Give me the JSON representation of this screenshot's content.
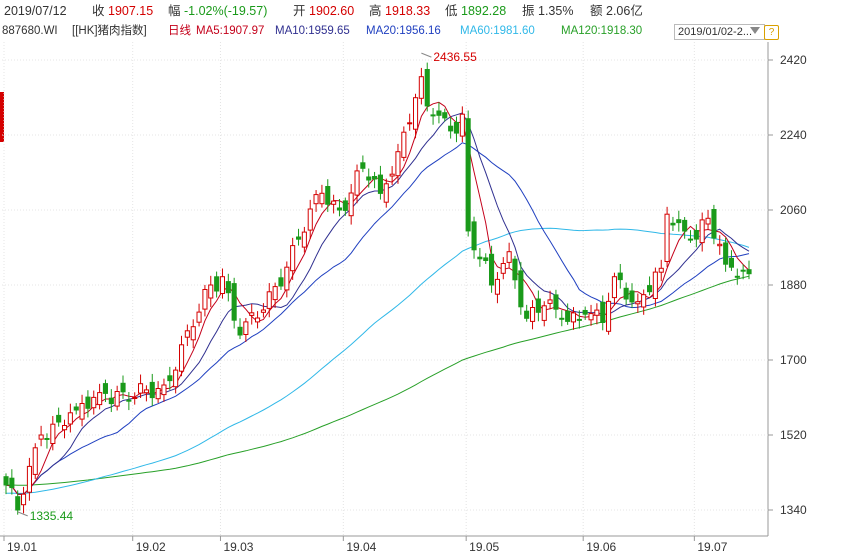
{
  "quote": {
    "date": "2019/07/12",
    "close_label": "收",
    "close": "1907.15",
    "change_label": "幅",
    "change": "-1.02%(-19.57)",
    "open_label": "开",
    "open": "1902.60",
    "high_label": "高",
    "high": "1918.33",
    "low_label": "低",
    "low": "1892.28",
    "amp_label": "振",
    "amp": "1.35%",
    "amount_label": "额",
    "amount": "2.06亿"
  },
  "legend": {
    "symbol": "887680.WI",
    "name": "[[HK]猪肉指数]",
    "period": "日线",
    "ma5": "MA5:1907.97",
    "ma10": "MA10:1959.65",
    "ma20": "MA20:1956.16",
    "ma60": "MA60:1981.60",
    "ma120": "MA120:1918.30",
    "range": "2019/01/02-2...",
    "help": "?"
  },
  "colors": {
    "up": "#d40000",
    "down": "#1a9a1a",
    "ma5": "#c4001a",
    "ma10": "#303090",
    "ma20": "#2040c0",
    "ma60": "#30b8e8",
    "ma120": "#28a028",
    "grid": "#e4e4e4",
    "axis": "#999999"
  },
  "chart_data": {
    "type": "candlestick",
    "yticks": [
      2420,
      2240,
      2060,
      1880,
      1700,
      1520,
      1340
    ],
    "xticks": [
      "19.01",
      "19.02",
      "19.03",
      "19.04",
      "19.05",
      "19.06",
      "19.07"
    ],
    "ylim": [
      1300,
      2460
    ],
    "annotations": [
      {
        "text": "2436.55",
        "value": 2436.55,
        "date": "19.04"
      },
      {
        "text": "1335.44",
        "value": 1335.44,
        "date": "19.01"
      }
    ],
    "anchors": [
      {
        "date": "2019-01-02",
        "close": 1400
      },
      {
        "date": "2019-01-04",
        "close": 1340
      },
      {
        "date": "2019-01-10",
        "close": 1520
      },
      {
        "date": "2019-01-18",
        "close": 1580
      },
      {
        "date": "2019-01-25",
        "close": 1620
      },
      {
        "date": "2019-02-01",
        "close": 1610
      },
      {
        "date": "2019-02-15",
        "close": 1640
      },
      {
        "date": "2019-02-22",
        "close": 1780
      },
      {
        "date": "2019-02-27",
        "close": 1880
      },
      {
        "date": "2019-03-01",
        "close": 1900
      },
      {
        "date": "2019-03-06",
        "close": 1760
      },
      {
        "date": "2019-03-12",
        "close": 1820
      },
      {
        "date": "2019-03-20",
        "close": 1990
      },
      {
        "date": "2019-03-26",
        "close": 2100
      },
      {
        "date": "2019-03-29",
        "close": 2060
      },
      {
        "date": "2019-04-04",
        "close": 2160
      },
      {
        "date": "2019-04-10",
        "close": 2100
      },
      {
        "date": "2019-04-15",
        "close": 2200
      },
      {
        "date": "2019-04-19",
        "close": 2380
      },
      {
        "date": "2019-04-22",
        "close": 2310
      },
      {
        "date": "2019-04-26",
        "close": 2250
      },
      {
        "date": "2019-04-30",
        "close": 2290
      },
      {
        "date": "2019-05-06",
        "close": 2010
      },
      {
        "date": "2019-05-10",
        "close": 1880
      },
      {
        "date": "2019-05-15",
        "close": 1960
      },
      {
        "date": "2019-05-20",
        "close": 1800
      },
      {
        "date": "2019-05-23",
        "close": 1830
      },
      {
        "date": "2019-05-28",
        "close": 1800
      },
      {
        "date": "2019-06-03",
        "close": 1810
      },
      {
        "date": "2019-06-06",
        "close": 1790
      },
      {
        "date": "2019-06-11",
        "close": 1900
      },
      {
        "date": "2019-06-17",
        "close": 1840
      },
      {
        "date": "2019-06-21",
        "close": 1920
      },
      {
        "date": "2019-06-24",
        "close": 2050
      },
      {
        "date": "2019-06-28",
        "close": 1990
      },
      {
        "date": "2019-07-03",
        "close": 2040
      },
      {
        "date": "2019-07-08",
        "close": 1930
      },
      {
        "date": "2019-07-12",
        "close": 1907.15
      }
    ]
  }
}
